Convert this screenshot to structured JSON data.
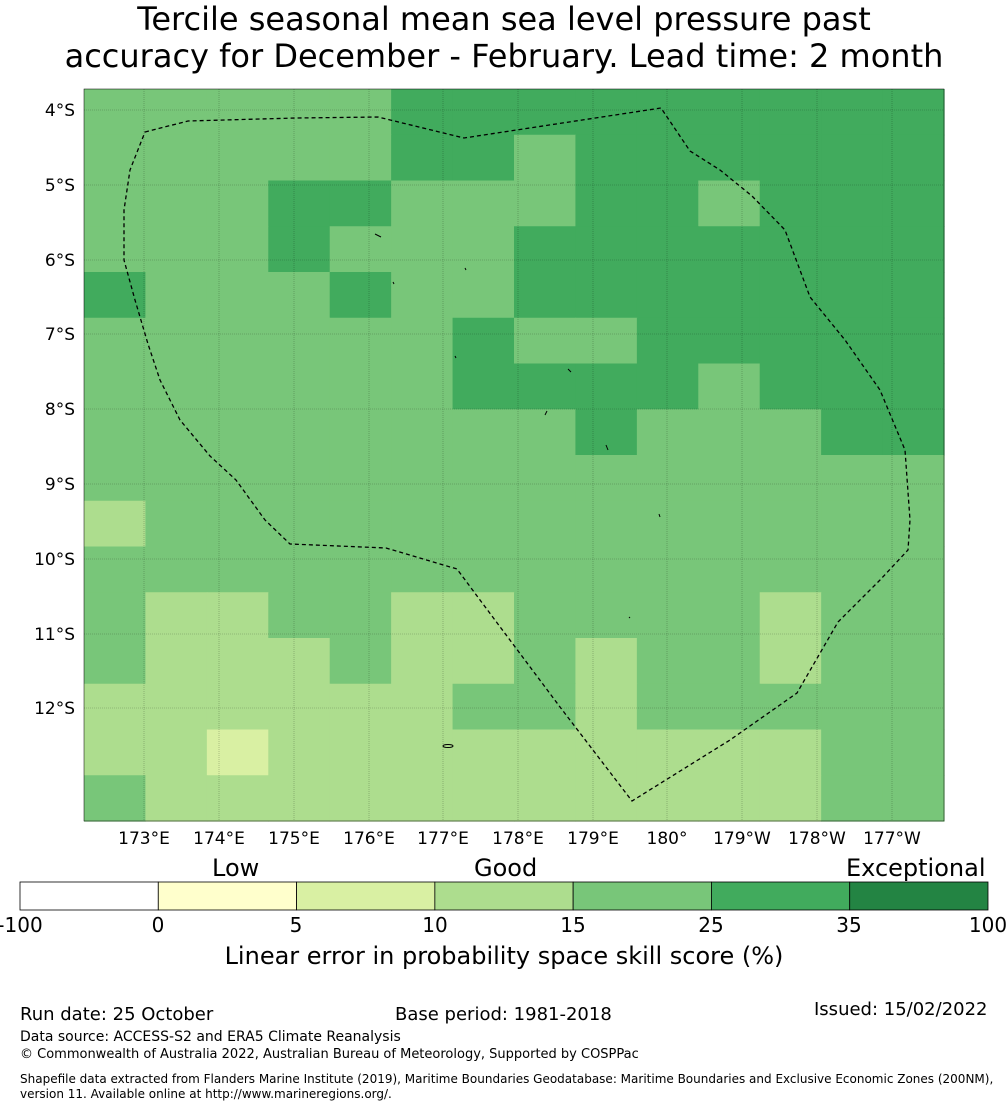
{
  "title": {
    "line1": "Tercile seasonal mean sea level pressure past",
    "line2": "accuracy for December - February. Lead time: 2 month"
  },
  "map": {
    "lat_labels": [
      "4°S",
      "5°S",
      "6°S",
      "7°S",
      "8°S",
      "9°S",
      "10°S",
      "11°S",
      "12°S"
    ],
    "lon_labels": [
      "173°E",
      "174°E",
      "175°E",
      "176°E",
      "177°E",
      "178°E",
      "179°E",
      "180°",
      "179°W",
      "178°W",
      "177°W"
    ],
    "extent": {
      "lon_min": 172.2,
      "lon_max": 183.7,
      "lat_max": -3.7,
      "lat_min": -13.5
    },
    "grid_cells": [
      [
        2,
        2,
        2,
        2,
        2,
        3,
        3,
        3,
        3,
        3,
        3,
        3,
        3,
        3
      ],
      [
        2,
        2,
        2,
        2,
        2,
        3,
        3,
        2,
        3,
        3,
        3,
        3,
        3,
        3
      ],
      [
        2,
        2,
        2,
        3,
        3,
        2,
        2,
        2,
        3,
        3,
        2,
        3,
        3,
        3
      ],
      [
        2,
        2,
        2,
        3,
        2,
        2,
        2,
        3,
        3,
        3,
        3,
        3,
        3,
        3
      ],
      [
        3,
        2,
        2,
        2,
        3,
        2,
        2,
        3,
        3,
        3,
        3,
        3,
        3,
        3
      ],
      [
        2,
        2,
        2,
        2,
        2,
        2,
        3,
        2,
        2,
        3,
        3,
        3,
        3,
        3
      ],
      [
        2,
        2,
        2,
        2,
        2,
        2,
        3,
        3,
        3,
        3,
        2,
        3,
        3,
        3
      ],
      [
        2,
        2,
        2,
        2,
        2,
        2,
        2,
        2,
        3,
        2,
        2,
        2,
        3,
        3
      ],
      [
        2,
        2,
        2,
        2,
        2,
        2,
        2,
        2,
        2,
        2,
        2,
        2,
        2,
        2
      ],
      [
        1,
        2,
        2,
        2,
        2,
        2,
        2,
        2,
        2,
        2,
        2,
        2,
        2,
        2
      ],
      [
        2,
        2,
        2,
        2,
        2,
        2,
        2,
        2,
        2,
        2,
        2,
        2,
        2,
        2
      ],
      [
        2,
        1,
        1,
        2,
        2,
        1,
        1,
        2,
        2,
        2,
        2,
        1,
        2,
        2
      ],
      [
        2,
        1,
        1,
        1,
        2,
        1,
        1,
        2,
        1,
        2,
        2,
        1,
        2,
        2
      ],
      [
        1,
        1,
        1,
        1,
        1,
        1,
        2,
        2,
        1,
        2,
        2,
        2,
        2,
        2
      ],
      [
        1,
        1,
        0,
        1,
        1,
        1,
        1,
        1,
        1,
        1,
        1,
        1,
        2,
        2
      ],
      [
        2,
        1,
        1,
        1,
        1,
        1,
        1,
        1,
        1,
        1,
        1,
        1,
        2,
        2
      ]
    ],
    "grid_note": "0=5-10,1=10-15,2=15-25,3=25-35"
  },
  "colorbar": {
    "categories": [
      "Low",
      "Good",
      "Exceptional"
    ],
    "ticks": [
      "-100",
      "0",
      "5",
      "10",
      "15",
      "25",
      "35",
      "100"
    ],
    "colors": [
      "#ffffff",
      "#ffffcc",
      "#d9f0a3",
      "#addd8e",
      "#78c679",
      "#41ab5d",
      "#238443"
    ],
    "label": "Linear error in probability space skill score (%)"
  },
  "footer": {
    "run_date": "Run date: 25 October",
    "base_period": "Base period: 1981-2018",
    "issued": "Issued: 15/02/2022",
    "data_source": "Data source: ACCESS-S2 and ERA5 Climate Reanalysis",
    "copyright": "© Commonwealth of Australia 2022, Australian Bureau of Meteorology, Supported by COSPPac",
    "shapefile_line1": "Shapefile data extracted from Flanders Marine Institute (2019), Maritime Boundaries Geodatabase: Maritime Boundaries and Exclusive Economic Zones (200NM),",
    "shapefile_line2": "version 11. Available online at http://www.marineregions.org/."
  }
}
